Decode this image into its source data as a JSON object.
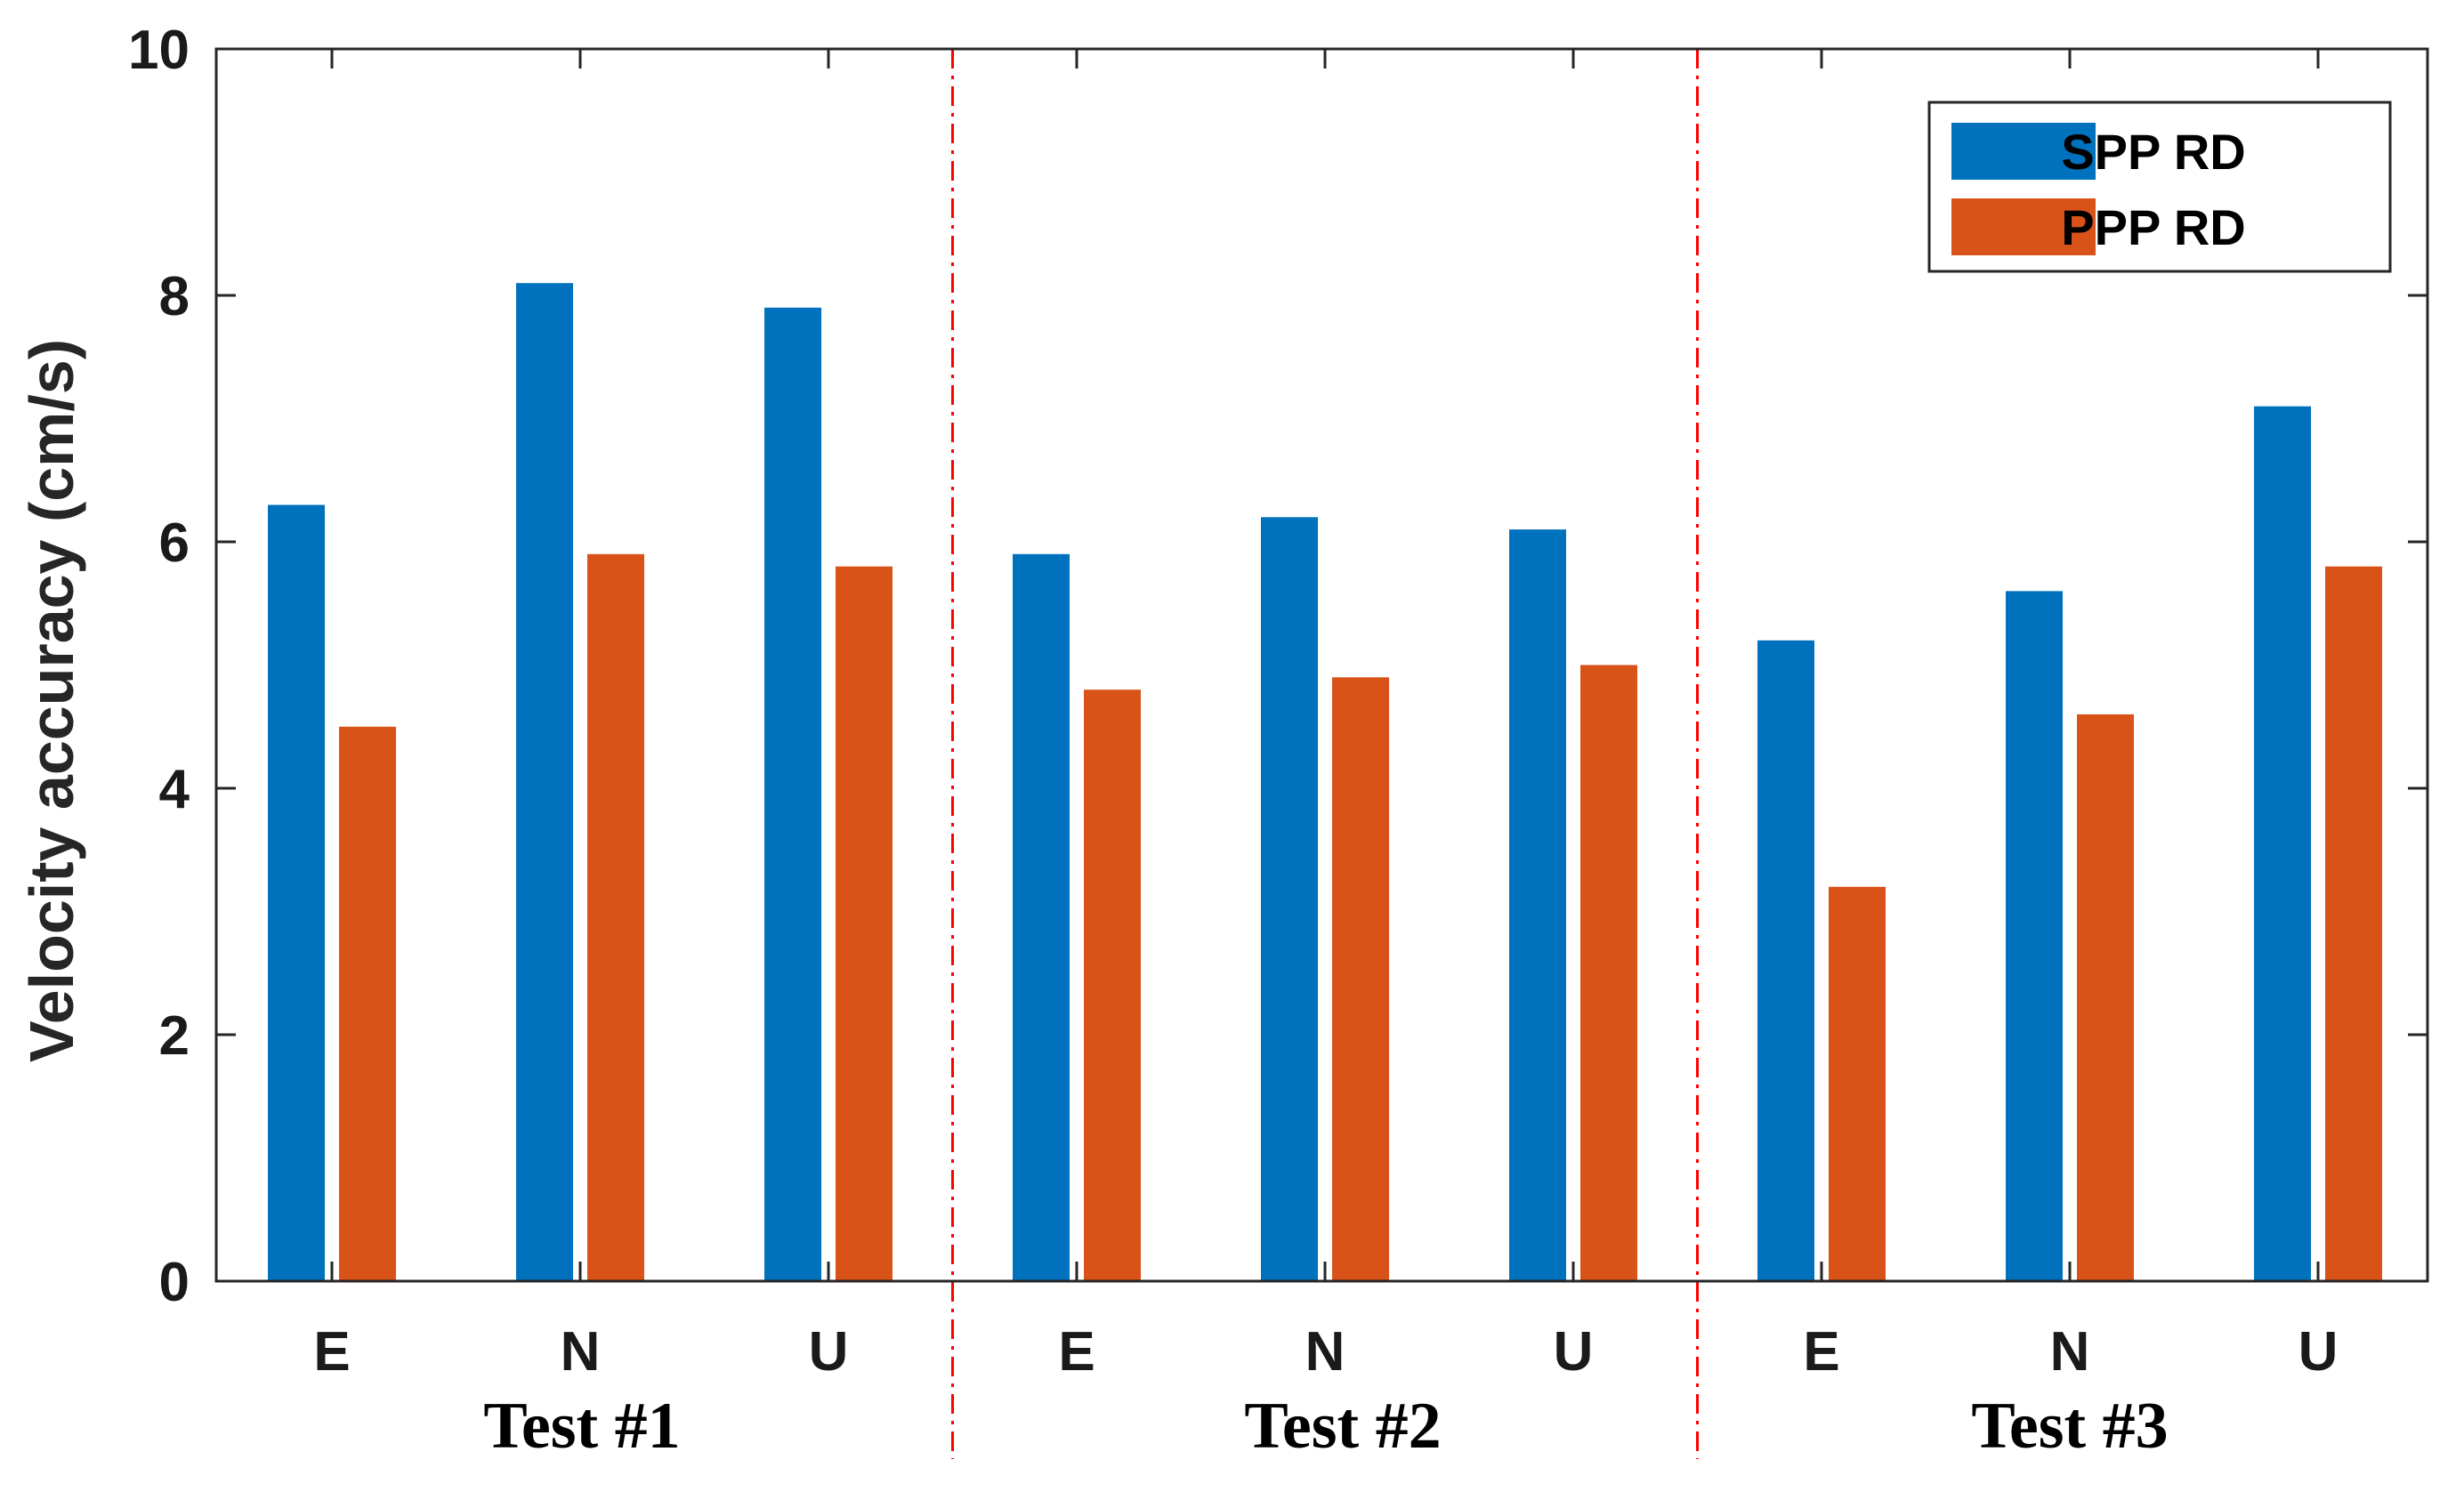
{
  "chart_data": {
    "type": "bar",
    "title": "",
    "xlabel": "",
    "ylabel": "Velocity accuracy (cm/s)",
    "ylim": [
      0,
      10
    ],
    "yticks": [
      0,
      2,
      4,
      6,
      8,
      10
    ],
    "ytick_labels": [
      "0",
      "2",
      "4",
      "6",
      "8",
      "10"
    ],
    "categories": [
      "E",
      "N",
      "U",
      "E",
      "N",
      "U",
      "E",
      "N",
      "U"
    ],
    "groups": [
      {
        "label": "Test #1",
        "categories": [
          0,
          1,
          2
        ]
      },
      {
        "label": "Test #2",
        "categories": [
          3,
          4,
          5
        ]
      },
      {
        "label": "Test #3",
        "categories": [
          6,
          7,
          8
        ]
      }
    ],
    "series": [
      {
        "name": "SPP RD",
        "color": "#0072BD",
        "values": [
          6.3,
          8.1,
          7.9,
          5.9,
          6.2,
          6.1,
          5.2,
          5.6,
          7.1
        ]
      },
      {
        "name": "PPP RD",
        "color": "#D95319",
        "values": [
          4.5,
          5.9,
          5.8,
          4.8,
          4.9,
          5.0,
          3.2,
          4.6,
          5.8
        ]
      }
    ],
    "separator_color": "#FF0000",
    "grid": false,
    "legend_position": "top-right"
  }
}
